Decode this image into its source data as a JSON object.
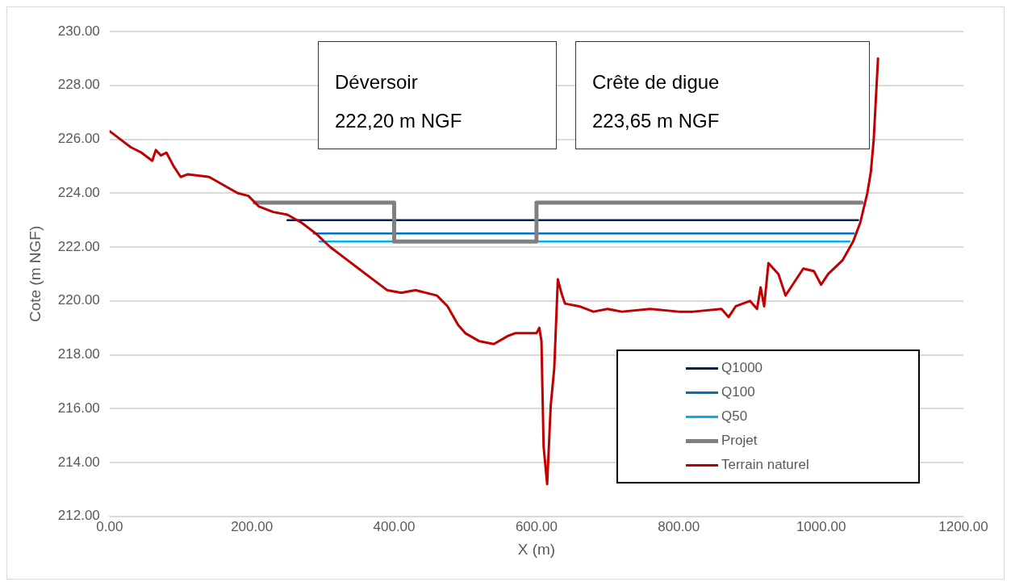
{
  "chart_data": {
    "type": "line",
    "xlabel": "X (m)",
    "ylabel": "Cote (m NGF)",
    "xlim": [
      0,
      1200
    ],
    "ylim": [
      212,
      230
    ],
    "xticks": [
      {
        "value": 0,
        "label": "0.00"
      },
      {
        "value": 200,
        "label": "200.00"
      },
      {
        "value": 400,
        "label": "400.00"
      },
      {
        "value": 600,
        "label": "600.00"
      },
      {
        "value": 800,
        "label": "800.00"
      },
      {
        "value": 1000,
        "label": "1000.00"
      },
      {
        "value": 1200,
        "label": "1200.00"
      }
    ],
    "yticks": [
      {
        "value": 212,
        "label": "212.00"
      },
      {
        "value": 214,
        "label": "214.00"
      },
      {
        "value": 216,
        "label": "216.00"
      },
      {
        "value": 218,
        "label": "218.00"
      },
      {
        "value": 220,
        "label": "220.00"
      },
      {
        "value": 222,
        "label": "222.00"
      },
      {
        "value": 224,
        "label": "224.00"
      },
      {
        "value": 226,
        "label": "226.00"
      },
      {
        "value": 228,
        "label": "228.00"
      },
      {
        "value": 230,
        "label": "230.00"
      }
    ],
    "grid": "y",
    "legend": "bottom right",
    "marker": "none",
    "line_style": "solid",
    "annotations": [
      "Déversoir\n222,20 m NGF",
      "Crête de digue\n223,65 m NGF"
    ],
    "series": [
      {
        "name": "Q1000",
        "color": "#002060",
        "x": [
          250,
          1052
        ],
        "values": [
          223.0,
          223.0
        ]
      },
      {
        "name": "Q100",
        "color": "#0070c0",
        "x": [
          287,
          1046
        ],
        "values": [
          222.5,
          222.5
        ]
      },
      {
        "name": "Q50",
        "color": "#00b0f0",
        "x": [
          295,
          1040
        ],
        "values": [
          222.2,
          222.2
        ]
      },
      {
        "name": "Projet",
        "color": "#808080",
        "x": [
          204,
          400,
          400,
          600,
          600,
          1057
        ],
        "values": [
          223.65,
          223.65,
          222.2,
          222.2,
          223.65,
          223.65
        ]
      },
      {
        "name": "Terrain naturel",
        "color": "#c00000",
        "x": [
          0,
          10,
          20,
          30,
          45,
          60,
          65,
          72,
          80,
          90,
          100,
          110,
          140,
          160,
          180,
          195,
          210,
          230,
          250,
          270,
          290,
          310,
          330,
          350,
          370,
          390,
          410,
          430,
          460,
          475,
          490,
          500,
          520,
          540,
          560,
          570,
          585,
          600,
          604,
          607,
          610,
          615,
          620,
          625,
          630,
          635,
          640,
          660,
          680,
          700,
          720,
          760,
          800,
          820,
          860,
          870,
          880,
          900,
          910,
          915,
          920,
          926,
          940,
          950,
          960,
          975,
          990,
          1000,
          1010,
          1030,
          1045,
          1055,
          1065,
          1070,
          1074,
          1080
        ],
        "values": [
          226.3,
          226.1,
          225.9,
          225.7,
          225.5,
          225.2,
          225.6,
          225.4,
          225.5,
          225.0,
          224.6,
          224.7,
          224.6,
          224.3,
          224.0,
          223.9,
          223.5,
          223.3,
          223.2,
          222.9,
          222.5,
          222.0,
          221.6,
          221.2,
          220.8,
          220.4,
          220.3,
          220.4,
          220.2,
          219.8,
          219.1,
          218.8,
          218.5,
          218.4,
          218.7,
          218.8,
          218.8,
          218.8,
          219.0,
          218.5,
          214.6,
          213.2,
          216.1,
          217.5,
          220.8,
          220.3,
          219.9,
          219.8,
          219.6,
          219.7,
          219.6,
          219.7,
          219.6,
          219.6,
          219.7,
          219.4,
          219.8,
          220.0,
          219.7,
          220.5,
          219.8,
          221.4,
          221.0,
          220.2,
          220.6,
          221.2,
          221.1,
          220.6,
          221.0,
          221.5,
          222.2,
          222.9,
          224.0,
          224.8,
          226.0,
          229.0
        ]
      }
    ]
  }
}
